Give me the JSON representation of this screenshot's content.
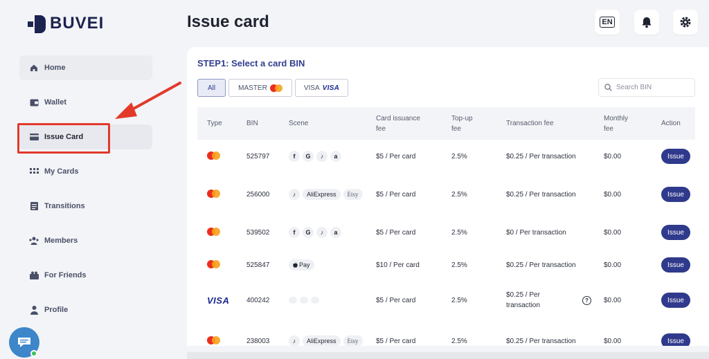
{
  "brand": {
    "name": "BUVEI"
  },
  "header": {
    "title": "Issue card",
    "lang": "EN"
  },
  "sidebar": {
    "items": [
      {
        "label": "Home",
        "icon": "home-icon"
      },
      {
        "label": "Wallet",
        "icon": "wallet-icon"
      },
      {
        "label": "Issue Card",
        "icon": "card-icon"
      },
      {
        "label": "My Cards",
        "icon": "grid-icon"
      },
      {
        "label": "Transitions",
        "icon": "list-icon"
      },
      {
        "label": "Members",
        "icon": "people-icon"
      },
      {
        "label": "For Friends",
        "icon": "gift-icon"
      },
      {
        "label": "Profile",
        "icon": "person-icon"
      }
    ]
  },
  "main": {
    "step_title": "STEP1: Select a card BIN",
    "filters": {
      "all": "All",
      "master": "MASTER",
      "visa": "VISA",
      "visa_logo": "VISA"
    },
    "search": {
      "placeholder": "Search BIN"
    },
    "table": {
      "headers": [
        "Type",
        "BIN",
        "Scene",
        "Card issuance fee",
        "Top-up fee",
        "Transaction fee",
        "Monthly fee",
        "Action"
      ],
      "rows": [
        {
          "type": "master",
          "bin": "525797",
          "scene": [
            "f",
            "G",
            "♪",
            "a"
          ],
          "issuance": "$5 / Per card",
          "topup": "2.5%",
          "transaction": "$0.25 / Per transaction",
          "monthly": "$0.00",
          "action": "Issue"
        },
        {
          "type": "master",
          "bin": "256000",
          "scene": [
            "♪",
            "AliExpress",
            "Etsy"
          ],
          "issuance": "$5 / Per card",
          "topup": "2.5%",
          "transaction": "$0.25 / Per transaction",
          "monthly": "$0.00",
          "action": "Issue"
        },
        {
          "type": "master",
          "bin": "539502",
          "scene": [
            "f",
            "G",
            "♪",
            "a"
          ],
          "issuance": "$5 / Per card",
          "topup": "2.5%",
          "transaction": "$0 / Per transaction",
          "monthly": "$0.00",
          "action": "Issue"
        },
        {
          "type": "master",
          "bin": "525847",
          "scene": [
            "Pay"
          ],
          "issuance": "$10 / Per card",
          "topup": "2.5%",
          "transaction": "$0.25 / Per transaction",
          "monthly": "$0.00",
          "action": "Issue"
        },
        {
          "type": "visa",
          "type_label": "VISA",
          "bin": "400242",
          "scene": [],
          "issuance": "$5 / Per card",
          "topup": "2.5%",
          "transaction": "$0.25 / Per transaction",
          "transaction_help": "?",
          "monthly": "$0.00",
          "action": "Issue"
        },
        {
          "type": "master",
          "bin": "238003",
          "scene": [
            "♪",
            "AliExpress",
            "Etsy"
          ],
          "issuance": "$5 / Per card",
          "topup": "2.5%",
          "transaction": "$0.25 / Per transaction",
          "monthly": "$0.00",
          "action": "Issue"
        }
      ]
    }
  },
  "colors": {
    "accent": "#2f3a8c",
    "highlight": "#e2392b",
    "brand": "#1c2350"
  }
}
